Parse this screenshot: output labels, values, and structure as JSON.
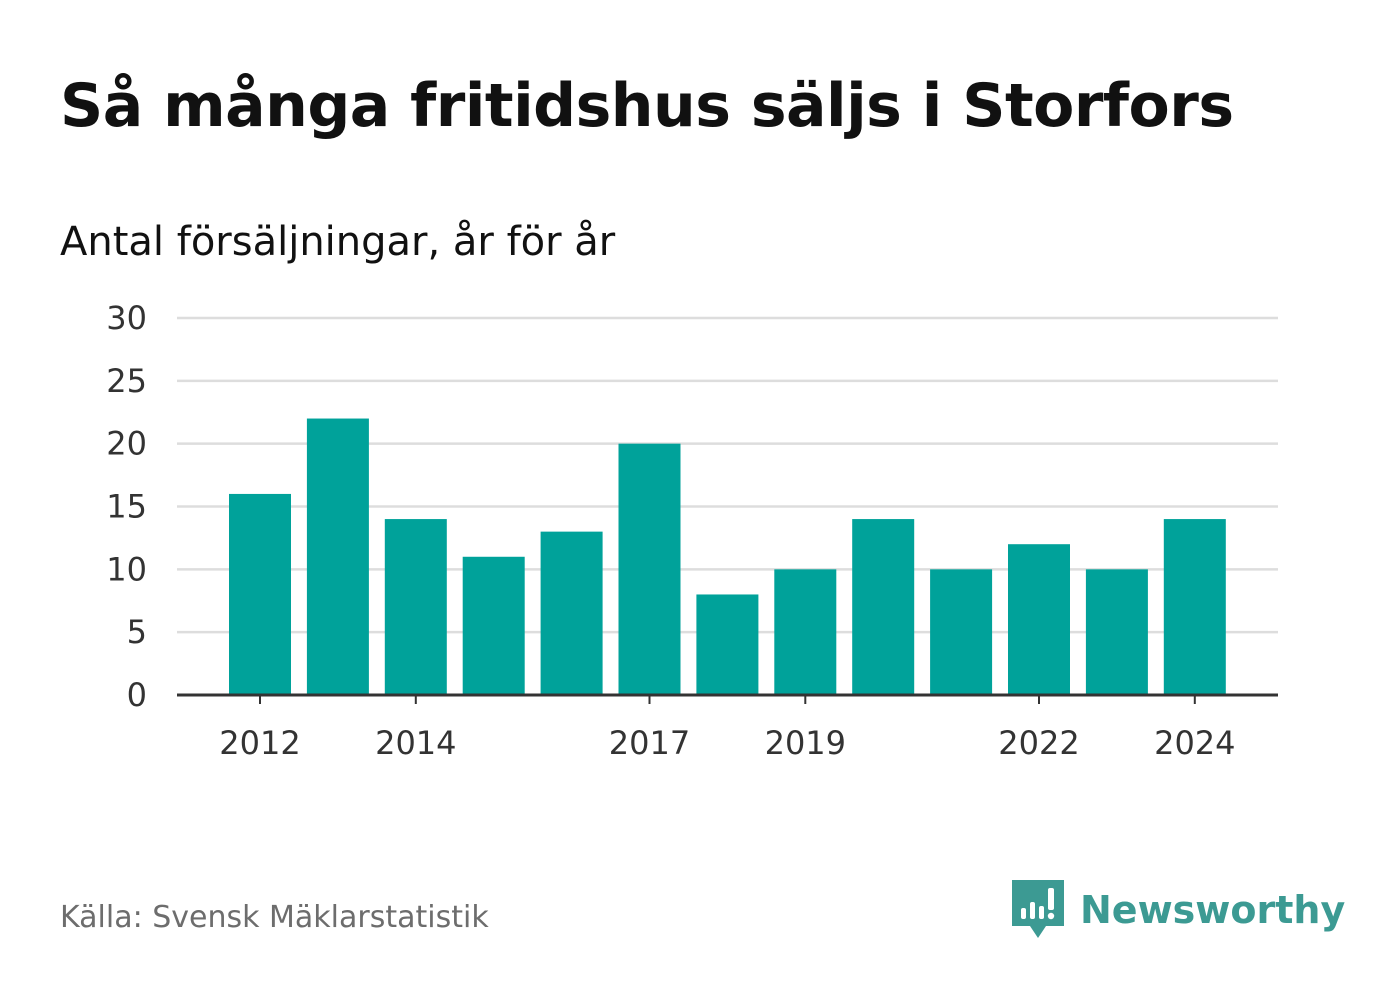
{
  "title": "Så många fritidshus säljs i Storfors",
  "subtitle": "Antal försäljningar, år för år",
  "source": "Källa: Svensk Mäklarstatistik",
  "brand": {
    "name": "Newsworthy",
    "icon": "newsworthy-logo-icon",
    "color": "#3c9a93"
  },
  "chart_data": {
    "type": "bar",
    "categories": [
      "2012",
      "2013",
      "2014",
      "2015",
      "2016",
      "2017",
      "2018",
      "2019",
      "2020",
      "2021",
      "2022",
      "2023",
      "2024"
    ],
    "values": [
      16,
      22,
      14,
      11,
      13,
      20,
      8,
      10,
      14,
      10,
      12,
      10,
      14
    ],
    "x_tick_labels": [
      "2012",
      "2014",
      "2017",
      "2019",
      "2022",
      "2024"
    ],
    "y_ticks": [
      0,
      5,
      10,
      15,
      20,
      25,
      30
    ],
    "ylim": [
      0,
      30
    ],
    "xlabel": "",
    "ylabel": "",
    "grid": true,
    "bar_color": "#00a29a",
    "grid_color": "#dddddd",
    "axis_color": "#333333"
  }
}
